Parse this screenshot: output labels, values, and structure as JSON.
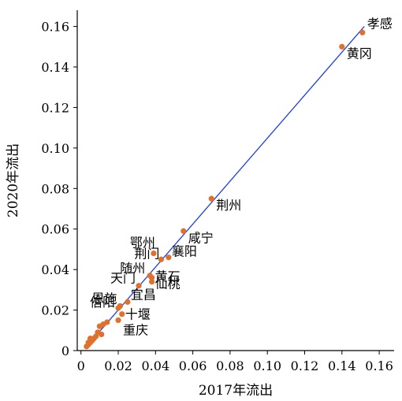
{
  "chart_data": {
    "type": "scatter",
    "xlabel": "2017年流出",
    "ylabel": "2020年流出",
    "xlim": [
      -0.002,
      0.168
    ],
    "ylim": [
      0,
      0.168
    ],
    "x_ticks": [
      "0",
      "0.02",
      "0.04",
      "0.06",
      "0.08",
      "0.10",
      "0.12",
      "0.14",
      "0.16"
    ],
    "y_ticks": [
      "0",
      "0.02",
      "0.04",
      "0.06",
      "0.08",
      "0.10",
      "0.12",
      "0.14",
      "0.16"
    ],
    "fit_line": {
      "x": [
        0.003,
        0.152
      ],
      "y": [
        0.002,
        0.16
      ],
      "color": "#1f3fe0"
    },
    "point_color": "#e0712c",
    "grid": false,
    "points": [
      {
        "label": "孝感",
        "x": 0.151,
        "y": 0.157
      },
      {
        "label": "黄冈",
        "x": 0.14,
        "y": 0.15
      },
      {
        "label": "荆州",
        "x": 0.07,
        "y": 0.075
      },
      {
        "label": "咸宁",
        "x": 0.055,
        "y": 0.059
      },
      {
        "label": "鄂州",
        "x": 0.039,
        "y": 0.048
      },
      {
        "label": "襄阳",
        "x": 0.047,
        "y": 0.046
      },
      {
        "label": "荆门",
        "x": 0.043,
        "y": 0.045
      },
      {
        "label": "黄石",
        "x": 0.038,
        "y": 0.036
      },
      {
        "label": "随州",
        "x": 0.037,
        "y": 0.037
      },
      {
        "label": "仙桃",
        "x": 0.038,
        "y": 0.034
      },
      {
        "label": "天门",
        "x": 0.031,
        "y": 0.032
      },
      {
        "label": "宜昌",
        "x": 0.025,
        "y": 0.024
      },
      {
        "label": "恩施",
        "x": 0.021,
        "y": 0.022
      },
      {
        "label": "信阳",
        "x": 0.02,
        "y": 0.021
      },
      {
        "label": "十堰",
        "x": 0.022,
        "y": 0.018
      },
      {
        "label": "重庆",
        "x": 0.02,
        "y": 0.015
      },
      {
        "label": "",
        "x": 0.014,
        "y": 0.014
      },
      {
        "label": "",
        "x": 0.012,
        "y": 0.013
      },
      {
        "label": "",
        "x": 0.01,
        "y": 0.012
      },
      {
        "label": "",
        "x": 0.011,
        "y": 0.008
      },
      {
        "label": "",
        "x": 0.009,
        "y": 0.009
      },
      {
        "label": "",
        "x": 0.008,
        "y": 0.007
      },
      {
        "label": "",
        "x": 0.007,
        "y": 0.006
      },
      {
        "label": "",
        "x": 0.006,
        "y": 0.005
      },
      {
        "label": "",
        "x": 0.005,
        "y": 0.004
      },
      {
        "label": "",
        "x": 0.004,
        "y": 0.003
      },
      {
        "label": "",
        "x": 0.003,
        "y": 0.002
      },
      {
        "label": "",
        "x": 0.005,
        "y": 0.006
      },
      {
        "label": "",
        "x": 0.004,
        "y": 0.004
      }
    ]
  }
}
